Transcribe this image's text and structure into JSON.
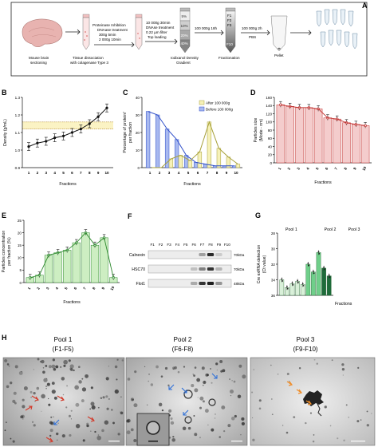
{
  "panel_labels": {
    "a": "A",
    "b": "B",
    "c": "C",
    "d": "D",
    "e": "E",
    "f": "F",
    "g": "G",
    "h": "H"
  },
  "workflow": {
    "step1": [
      "Mouse brain",
      "sectioning"
    ],
    "step2_above": [
      "Proteinase Inhibition",
      "DNAase treatment",
      "300g 5min",
      "2 000g 10min"
    ],
    "step2_below": [
      "Tissue dissociation",
      "with colagenase Type 3"
    ],
    "step3_above": [
      "10 000g 30min",
      "DNAse treatment",
      "0.22 µm filter",
      "Top loading"
    ],
    "step3_below": [
      "Iodixanol Density",
      "Gradient"
    ],
    "gradient_labels": [
      "5%",
      "10%",
      "20%",
      "40%"
    ],
    "step4_above": [
      "100 000g 18h"
    ],
    "step4_below": [
      "Fractionation"
    ],
    "fraction_labels": [
      "F1",
      "F2",
      "F3",
      "F10"
    ],
    "step5_above": [
      "100 000g 2h",
      "PBS"
    ],
    "step5_below": [
      "Pellet"
    ]
  },
  "charts": {
    "b": {
      "ylabel": "Density (g/mL)",
      "xlabel": "Fractions"
    },
    "c": {
      "ylabel": "Percentage of protein/ per fraction",
      "xlabel": "Fractions",
      "legend": [
        "After 100 000g",
        "Before 100 000g"
      ]
    },
    "d": {
      "ylabel": "Particles size (Mode - nm)",
      "xlabel": "Fractions"
    },
    "e": {
      "ylabel": "Particles concentration per fraction (%)",
      "xlabel": "Fractions"
    },
    "g": {
      "ylabel": "Cre exRNA detection (Ct value)",
      "xlabel": "Fractions",
      "pools": [
        "Pool 1",
        "Pool 2",
        "Pool 3"
      ]
    }
  },
  "chart_data": [
    {
      "panel": "B",
      "type": "line",
      "x": [
        1,
        2,
        3,
        4,
        5,
        6,
        7,
        8,
        9,
        10
      ],
      "y": [
        1.02,
        1.04,
        1.05,
        1.07,
        1.08,
        1.1,
        1.12,
        1.15,
        1.19,
        1.24
      ],
      "ylim": [
        0.9,
        1.3
      ],
      "yticks": [
        "0.9",
        "1.0",
        "1.1",
        "1.2",
        "1.3"
      ],
      "band": [
        1.12,
        1.16
      ],
      "color": "#111111"
    },
    {
      "panel": "C",
      "type": "bar",
      "x": [
        1,
        2,
        3,
        4,
        5,
        6,
        7,
        8,
        9,
        10
      ],
      "ylim": [
        0,
        40
      ],
      "yticks": [
        "0",
        "10",
        "20",
        "30",
        "40"
      ],
      "series": [
        {
          "name": "Before 100 000g",
          "values": [
            32,
            30,
            22,
            16,
            7,
            3,
            2,
            1,
            1,
            1
          ],
          "color": "#2f4fc9"
        },
        {
          "name": "After 100 000g",
          "values": [
            0,
            0,
            5,
            7,
            4,
            9,
            26,
            11,
            6,
            2
          ],
          "color": "#e2df74"
        }
      ]
    },
    {
      "panel": "D",
      "type": "bar",
      "x": [
        1,
        2,
        3,
        4,
        5,
        6,
        7,
        8,
        9,
        10
      ],
      "values": [
        142,
        138,
        135,
        135,
        132,
        110,
        107,
        98,
        94,
        91
      ],
      "ylim": [
        0,
        160
      ],
      "yticks": [
        "0",
        "20",
        "40",
        "60",
        "80",
        "100",
        "120",
        "140",
        "160"
      ],
      "color": "#f4cccc",
      "stroke": "#c0302e"
    },
    {
      "panel": "E",
      "type": "bar",
      "x": [
        1,
        2,
        3,
        4,
        5,
        6,
        7,
        8,
        9,
        10
      ],
      "values": [
        2,
        3,
        11,
        12,
        13,
        16,
        20,
        15,
        18,
        2
      ],
      "ylim": [
        0,
        25
      ],
      "yticks": [
        "0",
        "5",
        "10",
        "15",
        "20",
        "25"
      ],
      "color": "#cdeec2",
      "stroke": "#2f8a2f"
    },
    {
      "panel": "G",
      "type": "bar",
      "categories": [
        "F1",
        "F2",
        "F3",
        "F4",
        "F5",
        "F6",
        "F7",
        "F8",
        "F9",
        "F10"
      ],
      "values": [
        34,
        35,
        34.5,
        34.2,
        34.6,
        32,
        33,
        30.5,
        32.5,
        33.5
      ],
      "ylim": [
        36,
        28
      ],
      "yticks": [
        "36",
        "34",
        "32",
        "30",
        "28"
      ]
    }
  ],
  "western_blot": {
    "lanes": [
      "F1",
      "F2",
      "F3",
      "F4",
      "F5",
      "F6",
      "F7",
      "F8",
      "F9",
      "F10"
    ],
    "rows": [
      {
        "name": "Calnexin",
        "kda": "70kDa"
      },
      {
        "name": "HSC70",
        "kda": "70kDa"
      },
      {
        "name": "Flot1",
        "kda": "48kDa"
      }
    ]
  },
  "micrographs": [
    {
      "title": "Pool 1",
      "subtitle": "(F1-F5)"
    },
    {
      "title": "Pool 2",
      "subtitle": "(F6-F8)"
    },
    {
      "title": "Pool 3",
      "subtitle": "(F9-F10)"
    }
  ]
}
